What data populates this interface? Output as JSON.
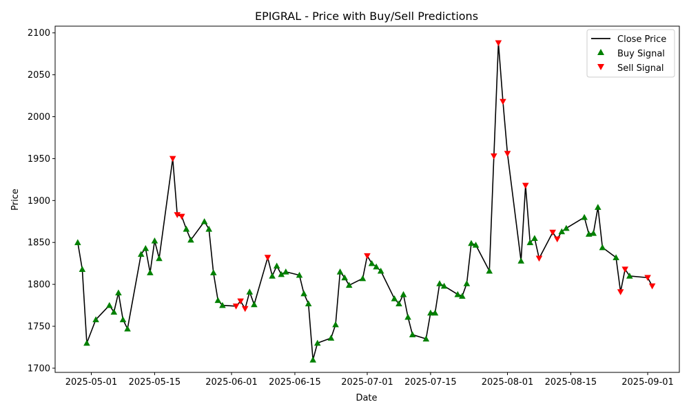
{
  "chart_data": {
    "type": "line",
    "title": "EPIGRAL - Price with Buy/Sell Predictions",
    "xlabel": "Date",
    "ylabel": "Price",
    "xlim": [
      "2025-04-23",
      "2025-09-08"
    ],
    "ylim": [
      1695,
      2108
    ],
    "grid": false,
    "legend_position": "top-right",
    "x_ticks": [
      "2025-05-01",
      "2025-05-15",
      "2025-06-01",
      "2025-06-15",
      "2025-07-01",
      "2025-07-15",
      "2025-08-01",
      "2025-08-15",
      "2025-09-01"
    ],
    "y_ticks": [
      1700,
      1750,
      1800,
      1850,
      1900,
      1950,
      2000,
      2050,
      2100
    ],
    "series": [
      {
        "name": "Close Price",
        "kind": "line",
        "color": "#000000"
      },
      {
        "name": "Buy Signal",
        "kind": "marker",
        "marker": "triangle-up",
        "color": "#008000"
      },
      {
        "name": "Sell Signal",
        "kind": "marker",
        "marker": "triangle-down",
        "color": "#ff0000"
      }
    ],
    "points": [
      {
        "date": "2025-04-28",
        "close": 1850,
        "signal": "buy"
      },
      {
        "date": "2025-04-29",
        "close": 1818,
        "signal": "buy"
      },
      {
        "date": "2025-04-30",
        "close": 1730,
        "signal": "buy"
      },
      {
        "date": "2025-05-02",
        "close": 1758,
        "signal": "buy"
      },
      {
        "date": "2025-05-05",
        "close": 1775,
        "signal": "buy"
      },
      {
        "date": "2025-05-06",
        "close": 1767,
        "signal": "buy"
      },
      {
        "date": "2025-05-07",
        "close": 1790,
        "signal": "buy"
      },
      {
        "date": "2025-05-08",
        "close": 1758,
        "signal": "buy"
      },
      {
        "date": "2025-05-09",
        "close": 1747,
        "signal": "buy"
      },
      {
        "date": "2025-05-12",
        "close": 1836,
        "signal": "buy"
      },
      {
        "date": "2025-05-13",
        "close": 1843,
        "signal": "buy"
      },
      {
        "date": "2025-05-14",
        "close": 1814,
        "signal": "buy"
      },
      {
        "date": "2025-05-15",
        "close": 1852,
        "signal": "buy"
      },
      {
        "date": "2025-05-16",
        "close": 1831,
        "signal": "buy"
      },
      {
        "date": "2025-05-19",
        "close": 1950,
        "signal": "sell"
      },
      {
        "date": "2025-05-20",
        "close": 1883,
        "signal": "sell"
      },
      {
        "date": "2025-05-21",
        "close": 1881,
        "signal": "sell"
      },
      {
        "date": "2025-05-22",
        "close": 1866,
        "signal": "buy"
      },
      {
        "date": "2025-05-23",
        "close": 1853,
        "signal": "buy"
      },
      {
        "date": "2025-05-26",
        "close": 1875,
        "signal": "buy"
      },
      {
        "date": "2025-05-27",
        "close": 1866,
        "signal": "buy"
      },
      {
        "date": "2025-05-28",
        "close": 1814,
        "signal": "buy"
      },
      {
        "date": "2025-05-29",
        "close": 1781,
        "signal": "buy"
      },
      {
        "date": "2025-05-30",
        "close": 1775,
        "signal": "buy"
      },
      {
        "date": "2025-06-02",
        "close": 1774,
        "signal": "sell"
      },
      {
        "date": "2025-06-03",
        "close": 1780,
        "signal": "sell"
      },
      {
        "date": "2025-06-04",
        "close": 1771,
        "signal": "sell"
      },
      {
        "date": "2025-06-05",
        "close": 1791,
        "signal": "buy"
      },
      {
        "date": "2025-06-06",
        "close": 1776,
        "signal": "buy"
      },
      {
        "date": "2025-06-09",
        "close": 1832,
        "signal": "sell"
      },
      {
        "date": "2025-06-10",
        "close": 1810,
        "signal": "buy"
      },
      {
        "date": "2025-06-11",
        "close": 1822,
        "signal": "buy"
      },
      {
        "date": "2025-06-12",
        "close": 1812,
        "signal": "buy"
      },
      {
        "date": "2025-06-13",
        "close": 1815,
        "signal": "buy"
      },
      {
        "date": "2025-06-16",
        "close": 1811,
        "signal": "buy"
      },
      {
        "date": "2025-06-17",
        "close": 1789,
        "signal": "buy"
      },
      {
        "date": "2025-06-18",
        "close": 1777,
        "signal": "buy"
      },
      {
        "date": "2025-06-19",
        "close": 1710,
        "signal": "buy"
      },
      {
        "date": "2025-06-20",
        "close": 1730,
        "signal": "buy"
      },
      {
        "date": "2025-06-23",
        "close": 1736,
        "signal": "buy"
      },
      {
        "date": "2025-06-24",
        "close": 1752,
        "signal": "buy"
      },
      {
        "date": "2025-06-25",
        "close": 1815,
        "signal": "buy"
      },
      {
        "date": "2025-06-26",
        "close": 1808,
        "signal": "buy"
      },
      {
        "date": "2025-06-27",
        "close": 1799,
        "signal": "buy"
      },
      {
        "date": "2025-06-30",
        "close": 1807,
        "signal": "buy"
      },
      {
        "date": "2025-07-01",
        "close": 1834,
        "signal": "sell"
      },
      {
        "date": "2025-07-02",
        "close": 1825,
        "signal": "buy"
      },
      {
        "date": "2025-07-03",
        "close": 1821,
        "signal": "buy"
      },
      {
        "date": "2025-07-04",
        "close": 1816,
        "signal": "buy"
      },
      {
        "date": "2025-07-07",
        "close": 1783,
        "signal": "buy"
      },
      {
        "date": "2025-07-08",
        "close": 1777,
        "signal": "buy"
      },
      {
        "date": "2025-07-09",
        "close": 1788,
        "signal": "buy"
      },
      {
        "date": "2025-07-10",
        "close": 1761,
        "signal": "buy"
      },
      {
        "date": "2025-07-11",
        "close": 1740,
        "signal": "buy"
      },
      {
        "date": "2025-07-14",
        "close": 1735,
        "signal": "buy"
      },
      {
        "date": "2025-07-15",
        "close": 1766,
        "signal": "buy"
      },
      {
        "date": "2025-07-16",
        "close": 1766,
        "signal": "buy"
      },
      {
        "date": "2025-07-17",
        "close": 1801,
        "signal": "buy"
      },
      {
        "date": "2025-07-18",
        "close": 1798,
        "signal": "buy"
      },
      {
        "date": "2025-07-21",
        "close": 1788,
        "signal": "buy"
      },
      {
        "date": "2025-07-22",
        "close": 1786,
        "signal": "buy"
      },
      {
        "date": "2025-07-23",
        "close": 1801,
        "signal": "buy"
      },
      {
        "date": "2025-07-24",
        "close": 1849,
        "signal": "buy"
      },
      {
        "date": "2025-07-25",
        "close": 1847,
        "signal": "buy"
      },
      {
        "date": "2025-07-28",
        "close": 1816,
        "signal": "buy"
      },
      {
        "date": "2025-07-29",
        "close": 1953,
        "signal": "sell"
      },
      {
        "date": "2025-07-30",
        "close": 2088,
        "signal": "sell"
      },
      {
        "date": "2025-07-31",
        "close": 2018,
        "signal": "sell"
      },
      {
        "date": "2025-08-01",
        "close": 1956,
        "signal": "sell"
      },
      {
        "date": "2025-08-04",
        "close": 1828,
        "signal": "buy"
      },
      {
        "date": "2025-08-05",
        "close": 1918,
        "signal": "sell"
      },
      {
        "date": "2025-08-06",
        "close": 1850,
        "signal": "buy"
      },
      {
        "date": "2025-08-07",
        "close": 1855,
        "signal": "buy"
      },
      {
        "date": "2025-08-08",
        "close": 1831,
        "signal": "sell"
      },
      {
        "date": "2025-08-11",
        "close": 1862,
        "signal": "sell"
      },
      {
        "date": "2025-08-12",
        "close": 1854,
        "signal": "sell"
      },
      {
        "date": "2025-08-13",
        "close": 1863,
        "signal": "buy"
      },
      {
        "date": "2025-08-14",
        "close": 1867,
        "signal": "buy"
      },
      {
        "date": "2025-08-18",
        "close": 1880,
        "signal": "buy"
      },
      {
        "date": "2025-08-19",
        "close": 1860,
        "signal": "buy"
      },
      {
        "date": "2025-08-20",
        "close": 1861,
        "signal": "buy"
      },
      {
        "date": "2025-08-21",
        "close": 1892,
        "signal": "buy"
      },
      {
        "date": "2025-08-22",
        "close": 1844,
        "signal": "buy"
      },
      {
        "date": "2025-08-25",
        "close": 1832,
        "signal": "buy"
      },
      {
        "date": "2025-08-26",
        "close": 1791,
        "signal": "sell"
      },
      {
        "date": "2025-08-27",
        "close": 1818,
        "signal": "sell"
      },
      {
        "date": "2025-08-28",
        "close": 1810,
        "signal": "buy"
      },
      {
        "date": "2025-09-01",
        "close": 1808,
        "signal": "sell"
      },
      {
        "date": "2025-09-02",
        "close": 1798,
        "signal": "sell"
      }
    ]
  }
}
